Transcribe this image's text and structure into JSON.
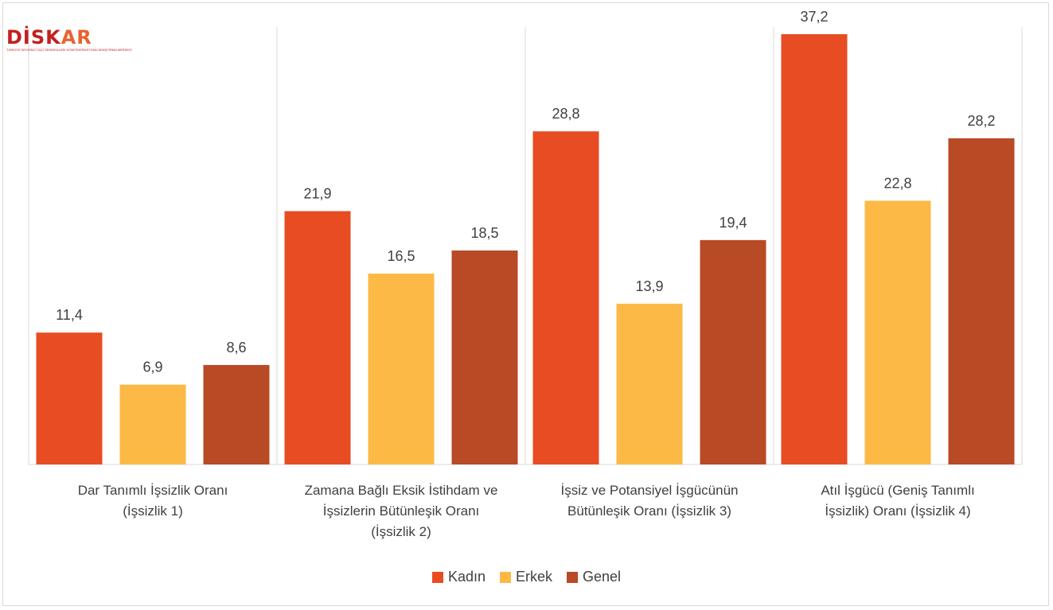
{
  "logo": {
    "part1": "DİSK",
    "part2": "AR",
    "tagline": "TÜRKİYE DEVRİMCİ İŞÇİ SENDİKALARI KONFEDERASYONU ARAŞTIRMA MERKEZİ"
  },
  "chart_data": {
    "type": "bar",
    "categories": [
      [
        "Dar Tanımlı İşsizlik Oranı",
        "(İşsizlik 1)"
      ],
      [
        "Zamana Bağlı Eksik İstihdam ve",
        "İşsizlerin Bütünleşik Oranı",
        "(İşsizlik 2)"
      ],
      [
        "İşsiz ve Potansiyel İşgücünün",
        "Bütünleşik Oranı (İşsizlik 3)"
      ],
      [
        "Atıl İşgücü (Geniş Tanımlı",
        "İşsizlik) Oranı (İşsizlik 4)"
      ]
    ],
    "series": [
      {
        "name": "Kadın",
        "color": "#e84c22",
        "values": [
          11.4,
          21.9,
          28.8,
          37.2
        ],
        "labels": [
          "11,4",
          "21,9",
          "28,8",
          "37,2"
        ]
      },
      {
        "name": "Erkek",
        "color": "#fdb945",
        "values": [
          6.9,
          16.5,
          13.9,
          22.8
        ],
        "labels": [
          "6,9",
          "16,5",
          "13,9",
          "22,8"
        ]
      },
      {
        "name": "Genel",
        "color": "#b84a25",
        "values": [
          8.6,
          18.5,
          19.4,
          28.2
        ],
        "labels": [
          "8,6",
          "18,5",
          "19,4",
          "28,2"
        ]
      }
    ],
    "ylim": [
      0,
      40
    ],
    "grid": false,
    "legend_position": "bottom"
  }
}
